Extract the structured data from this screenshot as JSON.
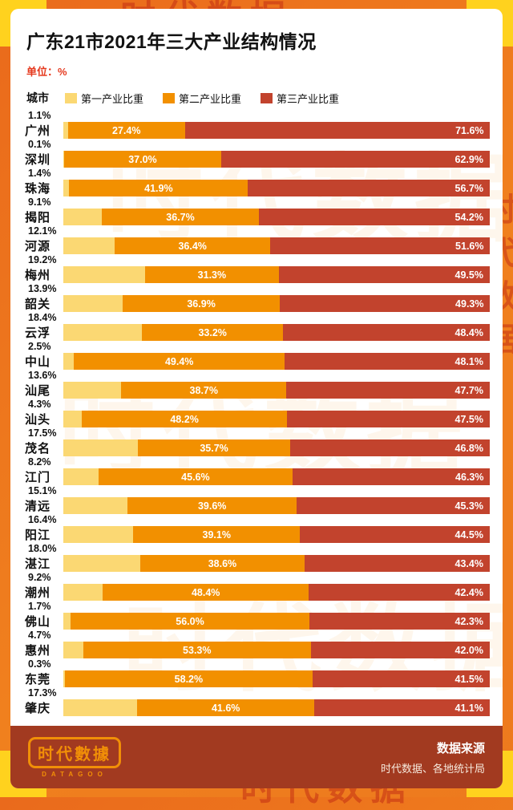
{
  "title": "广东21市2021年三大产业结构情况",
  "unit_label": "单位：%",
  "legend": {
    "city_label": "城市",
    "items": [
      {
        "label": "第一产业比重",
        "color": "#fbd873"
      },
      {
        "label": "第二产业比重",
        "color": "#f29000"
      },
      {
        "label": "第三产业比重",
        "color": "#c2432d"
      }
    ]
  },
  "chart_data": {
    "type": "bar",
    "orientation": "horizontal",
    "stacked": true,
    "unit": "%",
    "xlim": [
      0,
      100
    ],
    "categories": [
      "广州",
      "深圳",
      "珠海",
      "揭阳",
      "河源",
      "梅州",
      "韶关",
      "云浮",
      "中山",
      "汕尾",
      "汕头",
      "茂名",
      "江门",
      "清远",
      "阳江",
      "湛江",
      "潮州",
      "佛山",
      "惠州",
      "东莞",
      "肇庆"
    ],
    "series": [
      {
        "name": "第一产业比重",
        "color": "#fbd873",
        "values": [
          1.1,
          0.1,
          1.4,
          9.1,
          12.1,
          19.2,
          13.9,
          18.4,
          2.5,
          13.6,
          4.3,
          17.5,
          8.2,
          15.1,
          16.4,
          18.0,
          9.2,
          1.7,
          4.7,
          0.3,
          17.3
        ]
      },
      {
        "name": "第二产业比重",
        "color": "#f29000",
        "values": [
          27.4,
          37.0,
          41.9,
          36.7,
          36.4,
          31.3,
          36.9,
          33.2,
          49.4,
          38.7,
          48.2,
          35.7,
          45.6,
          39.6,
          39.1,
          38.6,
          48.4,
          56.0,
          53.3,
          58.2,
          41.6
        ]
      },
      {
        "name": "第三产业比重",
        "color": "#c2432d",
        "values": [
          71.6,
          62.9,
          56.7,
          54.2,
          51.6,
          49.5,
          49.3,
          48.4,
          48.1,
          47.7,
          47.5,
          46.8,
          46.3,
          45.3,
          44.5,
          43.4,
          42.4,
          42.3,
          42.0,
          41.5,
          41.1
        ]
      }
    ],
    "watermark_text": "时代数据"
  },
  "footer": {
    "logo_text": "时代數據",
    "logo_sub": "DATAGOO",
    "source_title": "数据来源",
    "source_text": "时代数据、各地统计局"
  },
  "colors": {
    "frame": "#ed7a1e",
    "corner_yellow": "#ffd21e",
    "card_bg": "#ffffff",
    "unit_red": "#e5391e",
    "footer_bg": "#a23a20",
    "logo_orange": "#f18f07"
  }
}
